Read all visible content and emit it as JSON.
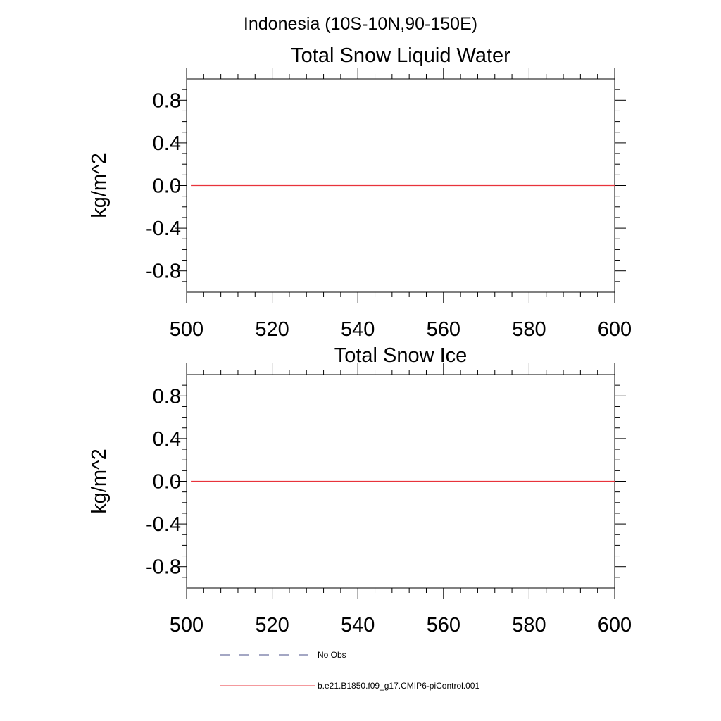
{
  "figure": {
    "main_title": "Indonesia (10S-10N,90-150E)"
  },
  "colors": {
    "model_line": "#e8333b",
    "obs_line": "#4a4f8a",
    "frame": "#000000"
  },
  "legend": {
    "placement": "bottom-left",
    "entries": [
      {
        "label": "No Obs",
        "style": "dashed",
        "color": "#4a4f8a"
      },
      {
        "label": "b.e21.B1850.f09_g17.CMIP6-piControl.001",
        "style": "solid",
        "color": "#e8333b"
      }
    ]
  },
  "chart_data": [
    {
      "type": "line",
      "title": "Total Snow Liquid Water",
      "xlabel": "",
      "ylabel": "kg/m^2",
      "xlim": [
        500,
        600
      ],
      "ylim": [
        -1.0,
        1.0
      ],
      "x_ticks": [
        500,
        520,
        540,
        560,
        580,
        600
      ],
      "x_tick_labels": [
        "500",
        "520",
        "540",
        "560",
        "580",
        "600"
      ],
      "y_ticks": [
        -0.8,
        -0.4,
        0.0,
        0.4,
        0.8
      ],
      "y_tick_labels": [
        "-0.8",
        "-0.4",
        "0.0",
        "0.4",
        "0.8"
      ],
      "grid": false,
      "series": [
        {
          "name": "b.e21.B1850.f09_g17.CMIP6-piControl.001",
          "color": "#e8333b",
          "x": [
            501,
            550,
            600
          ],
          "values": [
            0,
            0,
            0
          ]
        }
      ]
    },
    {
      "type": "line",
      "title": "Total Snow Ice",
      "xlabel": "",
      "ylabel": "kg/m^2",
      "xlim": [
        500,
        600
      ],
      "ylim": [
        -1.0,
        1.0
      ],
      "x_ticks": [
        500,
        520,
        540,
        560,
        580,
        600
      ],
      "x_tick_labels": [
        "500",
        "520",
        "540",
        "560",
        "580",
        "600"
      ],
      "y_ticks": [
        -0.8,
        -0.4,
        0.0,
        0.4,
        0.8
      ],
      "y_tick_labels": [
        "-0.8",
        "-0.4",
        "0.0",
        "0.4",
        "0.8"
      ],
      "grid": false,
      "series": [
        {
          "name": "b.e21.B1850.f09_g17.CMIP6-piControl.001",
          "color": "#e8333b",
          "x": [
            501,
            550,
            600
          ],
          "values": [
            0,
            0,
            0
          ]
        }
      ]
    }
  ]
}
